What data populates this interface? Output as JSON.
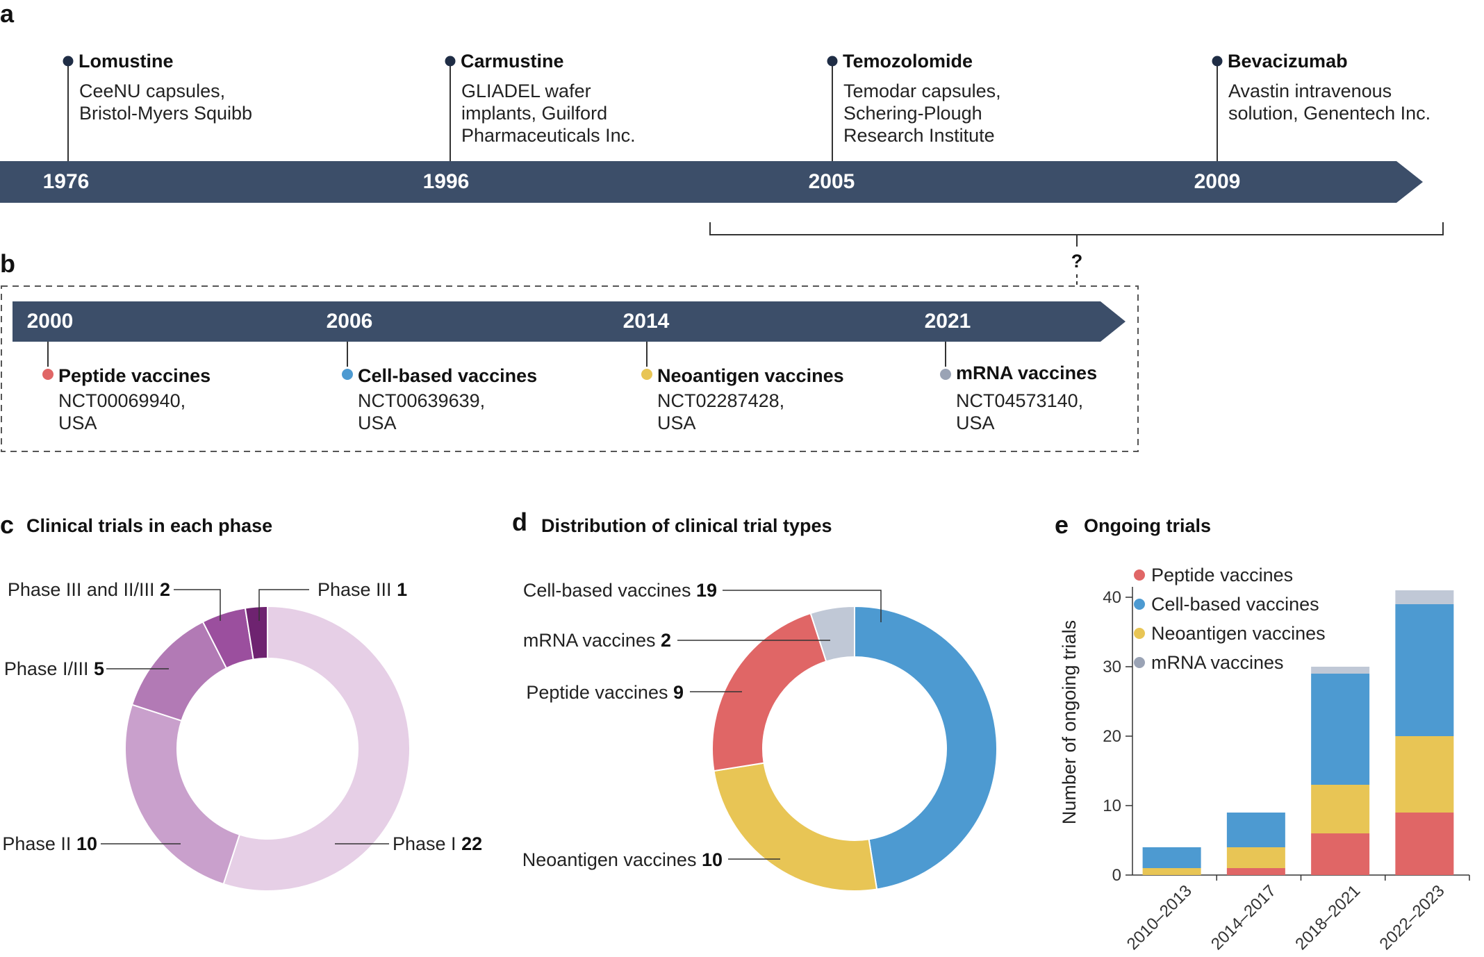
{
  "panels": {
    "a": "a",
    "b": "b",
    "c": "c",
    "d": "d",
    "e": "e"
  },
  "timeline_a": {
    "events": [
      {
        "year": "1976",
        "title": "Lomustine",
        "lines": [
          "CeeNU capsules,",
          "Bristol-Myers Squibb"
        ]
      },
      {
        "year": "1996",
        "title": "Carmustine",
        "lines": [
          "GLIADEL wafer",
          "implants, Guilford",
          "Pharmaceuticals Inc."
        ]
      },
      {
        "year": "2005",
        "title": "Temozolomide",
        "lines": [
          "Temodar capsules,",
          "Schering-Plough",
          "Research Institute"
        ]
      },
      {
        "year": "2009",
        "title": "Bevacizumab",
        "lines": [
          "Avastin intravenous",
          "solution, Genentech Inc."
        ]
      }
    ],
    "bracket_label": "?"
  },
  "timeline_b": {
    "events": [
      {
        "year": "2000",
        "title": "Peptide vaccines",
        "lines": [
          "NCT00069940,",
          "USA"
        ],
        "color": "#e06666"
      },
      {
        "year": "2006",
        "title": "Cell-based vaccines",
        "lines": [
          "NCT00639639,",
          "USA"
        ],
        "color": "#4d9ad1"
      },
      {
        "year": "2014",
        "title": "Neoantigen vaccines",
        "lines": [
          "NCT02287428,",
          "USA"
        ],
        "color": "#e8c555"
      },
      {
        "year": "2021",
        "title": "mRNA vaccines",
        "lines": [
          "NCT04573140,",
          "USA"
        ],
        "color": "#9aa3b5"
      }
    ]
  },
  "chart_data": [
    {
      "type": "pie",
      "title": "Clinical trials in each phase",
      "slices": [
        {
          "label": "Phase I",
          "value": 22,
          "color": "#e6cfe6"
        },
        {
          "label": "Phase II",
          "value": 10,
          "color": "#c9a0cc"
        },
        {
          "label": "Phase I/III",
          "value": 5,
          "color": "#b27ab5"
        },
        {
          "label": "Phase III and II/III",
          "value": 2,
          "color": "#9b4f9e"
        },
        {
          "label": "Phase III",
          "value": 1,
          "color": "#6e2370"
        }
      ]
    },
    {
      "type": "pie",
      "title": "Distribution of clinical trial types",
      "slices": [
        {
          "label": "Cell-based vaccines",
          "value": 19,
          "color": "#4d9ad1"
        },
        {
          "label": "Neoantigen vaccines",
          "value": 10,
          "color": "#e8c555"
        },
        {
          "label": "Peptide vaccines",
          "value": 9,
          "color": "#e06666"
        },
        {
          "label": "mRNA vaccines",
          "value": 2,
          "color": "#c0c8d6"
        }
      ]
    },
    {
      "type": "bar",
      "stacked": true,
      "title": "Ongoing trials",
      "ylabel": "Number of ongoing trials",
      "ylim": [
        0,
        40
      ],
      "yticks": [
        0,
        10,
        20,
        30,
        40
      ],
      "categories": [
        "2010–2013",
        "2014–2017",
        "2018–2021",
        "2022–2023"
      ],
      "series": [
        {
          "name": "Peptide vaccines",
          "color": "#e06666",
          "values": [
            0,
            1,
            6,
            9
          ]
        },
        {
          "name": "Neoantigen vaccines",
          "color": "#e8c555",
          "values": [
            1,
            3,
            7,
            11
          ]
        },
        {
          "name": "Cell-based vaccines",
          "color": "#4d9ad1",
          "values": [
            3,
            5,
            16,
            19
          ]
        },
        {
          "name": "mRNA vaccines",
          "color": "#c0c8d6",
          "values": [
            0,
            0,
            1,
            2
          ]
        }
      ],
      "legend": [
        "Peptide vaccines",
        "Cell-based vaccines",
        "Neoantigen vaccines",
        "mRNA vaccines"
      ],
      "legend_colors": [
        "#e06666",
        "#4d9ad1",
        "#e8c555",
        "#9aa3b5"
      ],
      "legend_position": "top-left"
    }
  ]
}
